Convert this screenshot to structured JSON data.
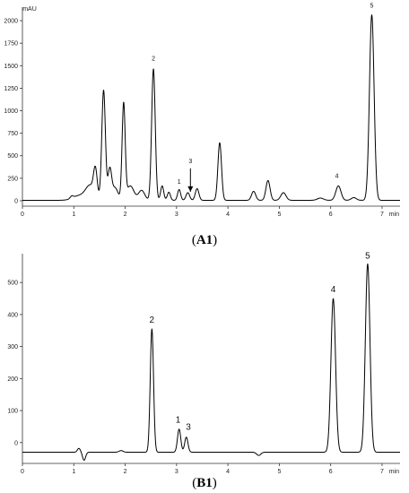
{
  "chart_data": [
    {
      "id": "A1",
      "type": "line",
      "panel_label": {
        "open": "(",
        "text": "A1",
        "close": ")"
      },
      "ylabel": "mAU",
      "xlabel": "min",
      "xlim": [
        0,
        7.35
      ],
      "ylim": [
        -60,
        2150
      ],
      "x_ticks": [
        0,
        1,
        2,
        3,
        4,
        5,
        6,
        7
      ],
      "y_ticks": [
        0,
        250,
        500,
        750,
        1000,
        1250,
        1500,
        1750,
        2000
      ],
      "baseline": 5,
      "peaks": [
        {
          "x": 0.96,
          "h": 25,
          "w": 0.03
        },
        {
          "x": 1.1,
          "h": 50,
          "w": 0.12
        },
        {
          "x": 1.32,
          "h": 160,
          "w": 0.09
        },
        {
          "x": 1.42,
          "h": 290,
          "w": 0.035
        },
        {
          "x": 1.58,
          "h": 1220,
          "w": 0.035
        },
        {
          "x": 1.7,
          "h": 330,
          "w": 0.035
        },
        {
          "x": 1.8,
          "h": 140,
          "w": 0.06
        },
        {
          "x": 1.97,
          "h": 1060,
          "w": 0.03
        },
        {
          "x": 2.1,
          "h": 160,
          "w": 0.07
        },
        {
          "x": 2.32,
          "h": 110,
          "w": 0.06
        },
        {
          "x": 2.55,
          "h": 1460,
          "w": 0.035
        },
        {
          "x": 2.72,
          "h": 160,
          "w": 0.03
        },
        {
          "x": 2.85,
          "h": 90,
          "w": 0.03
        },
        {
          "x": 3.05,
          "h": 120,
          "w": 0.03
        },
        {
          "x": 3.22,
          "h": 85,
          "w": 0.035
        },
        {
          "x": 3.4,
          "h": 130,
          "w": 0.035
        },
        {
          "x": 3.84,
          "h": 640,
          "w": 0.035
        },
        {
          "x": 4.5,
          "h": 100,
          "w": 0.04
        },
        {
          "x": 4.78,
          "h": 220,
          "w": 0.04
        },
        {
          "x": 5.08,
          "h": 85,
          "w": 0.05
        },
        {
          "x": 5.8,
          "h": 25,
          "w": 0.06
        },
        {
          "x": 6.15,
          "h": 160,
          "w": 0.05
        },
        {
          "x": 6.45,
          "h": 30,
          "w": 0.05
        },
        {
          "x": 6.8,
          "h": 2060,
          "w": 0.045
        }
      ],
      "annotations": [
        {
          "label": "2",
          "x": 2.55,
          "y": 1560
        },
        {
          "label": "1",
          "x": 3.05,
          "y": 190
        },
        {
          "label": "3",
          "x": 3.27,
          "y": 420
        },
        {
          "label": "4",
          "x": 6.12,
          "y": 255
        },
        {
          "label": "5",
          "x": 6.8,
          "y": 2145
        }
      ],
      "arrow": {
        "x": 3.27,
        "y_from": 360,
        "y_to": 100
      }
    },
    {
      "id": "B1",
      "type": "line",
      "panel_label": {
        "open": "(",
        "text": "B1",
        "close": ")"
      },
      "ylabel": "",
      "xlabel": "min",
      "xlim": [
        0,
        7.35
      ],
      "ylim": [
        -65,
        590
      ],
      "x_ticks": [
        0,
        1,
        2,
        3,
        4,
        5,
        6,
        7
      ],
      "y_ticks": [
        0,
        100,
        200,
        300,
        400,
        500
      ],
      "baseline": -30,
      "peaks": [
        {
          "x": 1.1,
          "h": 12,
          "w": 0.03
        },
        {
          "x": 1.2,
          "h": -25,
          "w": 0.03
        },
        {
          "x": 1.92,
          "h": 5,
          "w": 0.04
        },
        {
          "x": 2.52,
          "h": 385,
          "w": 0.032
        },
        {
          "x": 3.05,
          "h": 72,
          "w": 0.032
        },
        {
          "x": 3.19,
          "h": 47,
          "w": 0.032
        },
        {
          "x": 4.6,
          "h": -10,
          "w": 0.04
        },
        {
          "x": 6.05,
          "h": 480,
          "w": 0.045
        },
        {
          "x": 6.72,
          "h": 588,
          "w": 0.045
        }
      ],
      "annotations": [
        {
          "label": "2",
          "x": 2.52,
          "y": 375
        },
        {
          "label": "1",
          "x": 3.03,
          "y": 62
        },
        {
          "label": "3",
          "x": 3.23,
          "y": 40
        },
        {
          "label": "4",
          "x": 6.05,
          "y": 470
        },
        {
          "label": "5",
          "x": 6.72,
          "y": 575
        }
      ]
    }
  ]
}
